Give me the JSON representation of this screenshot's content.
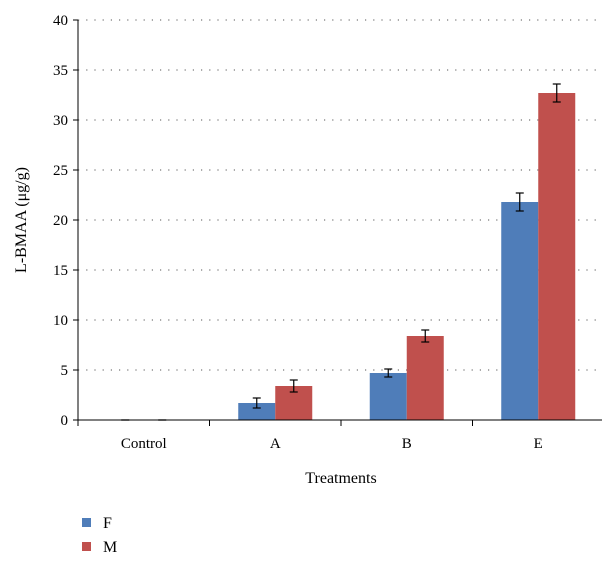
{
  "chart_data": {
    "type": "bar",
    "title": "",
    "xlabel": "Treatments",
    "ylabel": "L-BMAA (μg/g)",
    "categories": [
      "Control",
      "A",
      "B",
      "E"
    ],
    "series": [
      {
        "name": "F",
        "color": "#4F7DB9",
        "values": [
          0,
          1.7,
          4.7,
          21.8
        ],
        "errors": [
          0,
          0.5,
          0.4,
          0.9
        ]
      },
      {
        "name": "M",
        "color": "#C0504D",
        "values": [
          0,
          3.4,
          8.4,
          32.7
        ],
        "errors": [
          0,
          0.6,
          0.6,
          0.9
        ]
      }
    ],
    "ylim": [
      0,
      40
    ],
    "yticks": [
      "0",
      "5",
      "10",
      "15",
      "20",
      "25",
      "30",
      "35",
      "40"
    ],
    "grid": "horizontal dotted",
    "legend": "bottom-left"
  }
}
